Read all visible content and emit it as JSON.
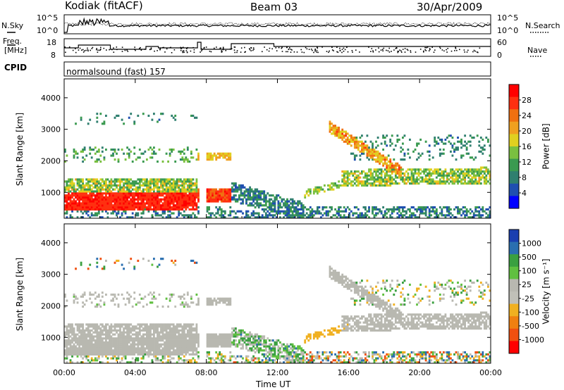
{
  "header": {
    "station": "Kodiak (fitACF)",
    "beam": "Beam 03",
    "date": "30/Apr/2009"
  },
  "top_panels": {
    "nsky_label": "N.Sky",
    "nsky_ticks": [
      "10^5",
      "10^0"
    ],
    "nsearch_label": "N.Search",
    "nsearch_ticks": [
      "10^5",
      "10^0"
    ],
    "freq_label_line1": "Freq.",
    "freq_label_line2": "[MHz]",
    "freq_ticks": [
      "18",
      "8"
    ],
    "nave_label": "Nave",
    "nave_ticks": [
      "60",
      "0"
    ],
    "cpid_label": "CPID",
    "cpid_value": "normalsound (fast) 157"
  },
  "chart_data": [
    {
      "type": "heatmap",
      "name": "power",
      "ylabel": "Slant Range [km]",
      "yticks": [
        "4000",
        "3000",
        "2000",
        "1000"
      ],
      "ytick_values": [
        4000,
        3000,
        2000,
        1000
      ],
      "ylim": [
        180,
        4600
      ],
      "xlim": [
        0,
        24
      ],
      "colorbar_label": "Power [dB]",
      "colorbar_ticks": [
        "28",
        "24",
        "20",
        "16",
        "12",
        "8",
        "4"
      ],
      "colorbar_tick_values": [
        28,
        24,
        20,
        16,
        12,
        8,
        4
      ],
      "colorbar_range": [
        0,
        32
      ],
      "colorbar_colors": [
        "#0000ff",
        "#1f4fb0",
        "#2f7f6f",
        "#3a9a50",
        "#7ac040",
        "#e0d020",
        "#f0a020",
        "#f07010",
        "#ff3010",
        "#ff0000"
      ]
    },
    {
      "type": "heatmap",
      "name": "velocity",
      "ylabel": "Slant Range [km]",
      "yticks": [
        "4000",
        "3000",
        "2000",
        "1000"
      ],
      "ytick_values": [
        4000,
        3000,
        2000,
        1000
      ],
      "ylim": [
        180,
        4600
      ],
      "xlim": [
        0,
        24
      ],
      "colorbar_label": "Velocity [m s⁻¹]",
      "colorbar_ticks": [
        "1000",
        "500",
        "100",
        "25",
        "-25",
        "-100",
        "-500",
        "-1000"
      ],
      "colorbar_colors": [
        "#1a3fb0",
        "#2a6fb0",
        "#3aa040",
        "#60c040",
        "#b8b8b0",
        "#c0c0b8",
        "#f0b020",
        "#f08010",
        "#f05010",
        "#ff0000"
      ]
    }
  ],
  "xaxis": {
    "label": "Time UT",
    "ticks": [
      "00:00",
      "04:00",
      "08:00",
      "12:00",
      "16:00",
      "20:00",
      "00:00"
    ],
    "tick_hours": [
      0,
      4,
      8,
      12,
      16,
      20,
      24
    ]
  }
}
